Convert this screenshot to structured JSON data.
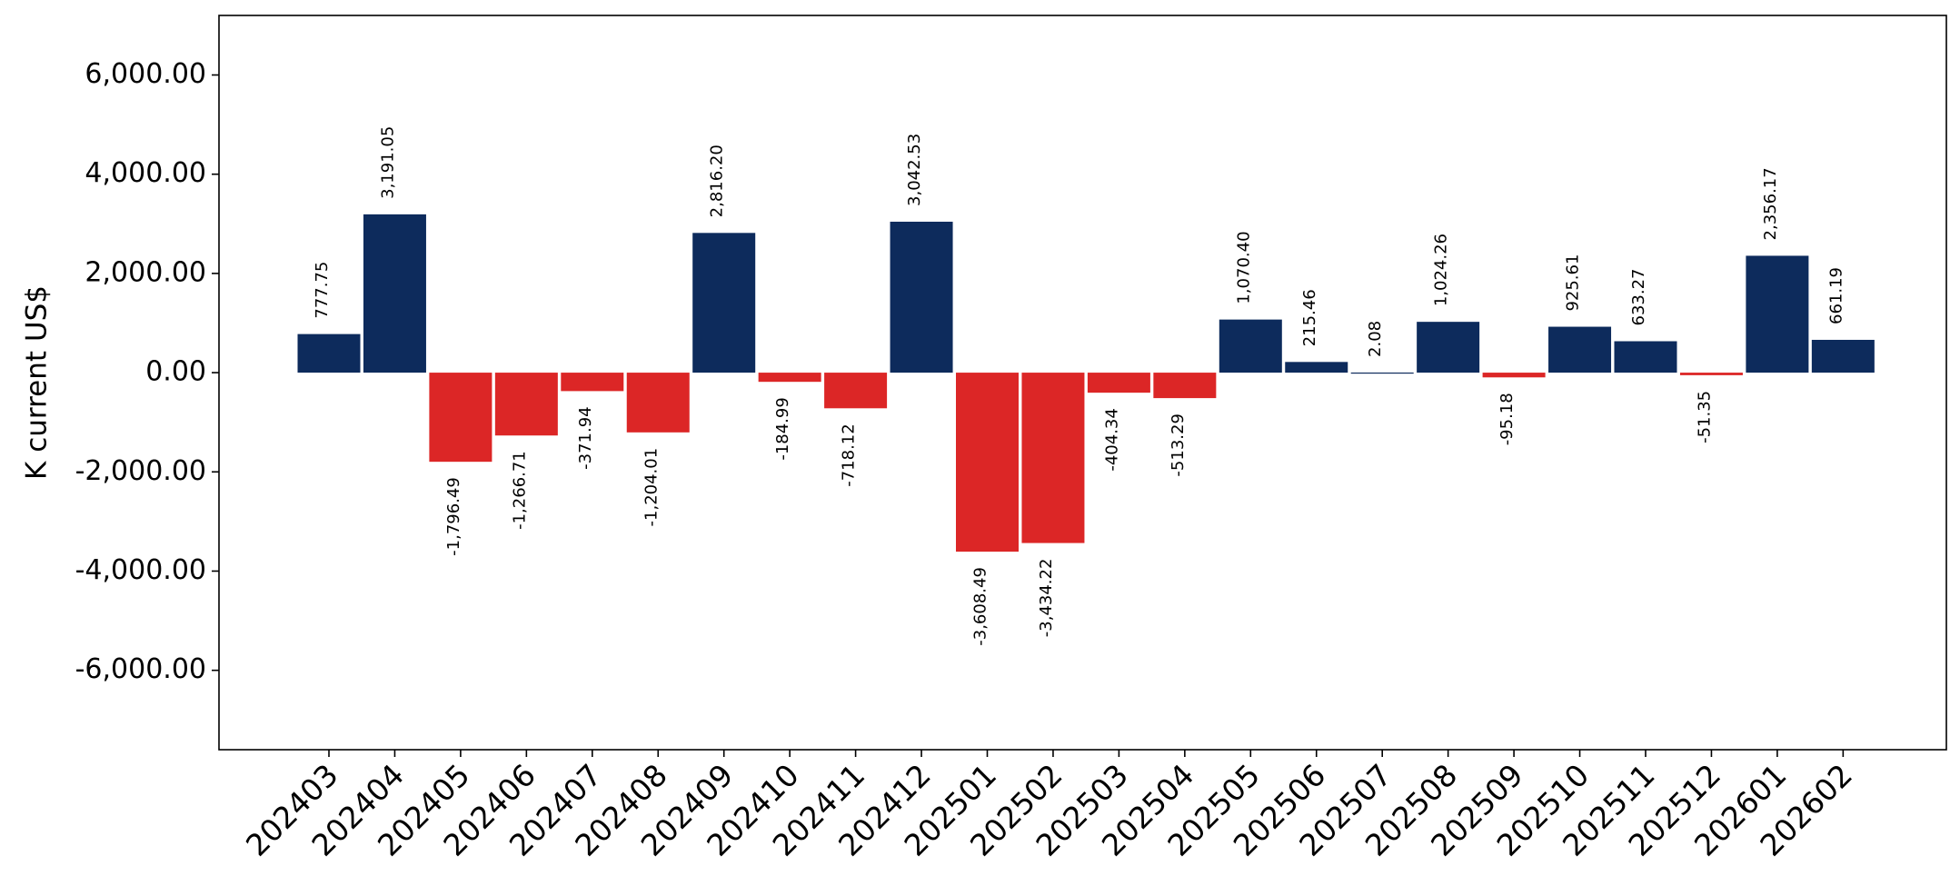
{
  "chart_data": {
    "type": "bar",
    "title": "",
    "xlabel": "",
    "ylabel": "K current US$",
    "ylim": [
      -7600,
      7200
    ],
    "yticks": [
      -6000,
      -4000,
      -2000,
      0,
      2000,
      4000,
      6000
    ],
    "ytick_labels": [
      "-6,000.00",
      "-4,000.00",
      "-2,000.00",
      "0.00",
      "2,000.00",
      "4,000.00",
      "6,000.00"
    ],
    "grid": false,
    "legend": "none",
    "colors": {
      "positive": "#0d2b5c",
      "negative": "#dc2626"
    },
    "categories": [
      "202403",
      "202404",
      "202405",
      "202406",
      "202407",
      "202408",
      "202409",
      "202410",
      "202411",
      "202412",
      "202501",
      "202502",
      "202503",
      "202504",
      "202505",
      "202506",
      "202507",
      "202508",
      "202509",
      "202510",
      "202511",
      "202512",
      "202601",
      "202602"
    ],
    "values": [
      777.75,
      3191.05,
      -1796.49,
      -1266.71,
      -371.94,
      -1204.01,
      2816.2,
      -184.99,
      -718.12,
      3042.53,
      -3608.49,
      -3434.22,
      -404.34,
      -513.29,
      1070.4,
      215.46,
      2.08,
      1024.26,
      -95.18,
      925.61,
      633.27,
      -51.35,
      2356.17,
      661.19
    ],
    "value_labels": [
      "777.75",
      "3,191.05",
      "-1,796.49",
      "-1,266.71",
      "-371.94",
      "-1,204.01",
      "2,816.20",
      "-184.99",
      "-718.12",
      "3,042.53",
      "-3,608.49",
      "-3,434.22",
      "-404.34",
      "-513.29",
      "1,070.40",
      "215.46",
      "2.08",
      "1,024.26",
      "-95.18",
      "925.61",
      "633.27",
      "-51.35",
      "2,356.17",
      "661.19"
    ]
  }
}
